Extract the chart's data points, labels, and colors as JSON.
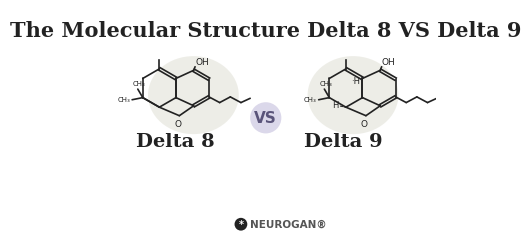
{
  "title": "The Molecular Structure Delta 8 VS Delta 9",
  "title_fontsize": 15,
  "title_fontweight": "bold",
  "background_color": "#ffffff",
  "label_delta8": "Delta 8",
  "label_delta9": "Delta 9",
  "label_vs": "VS",
  "label_fontsize": 14,
  "label_fontweight": "bold",
  "neurogan_text": "NEUROGAN®",
  "neurogan_fontsize": 7.5,
  "vs_circle_color": "#d8d4e8",
  "mol_bg_color": "#e8e8e0",
  "line_color": "#222222",
  "text_color": "#222222",
  "neurogan_color": "#555555",
  "neurogan_icon_color": "#222222"
}
